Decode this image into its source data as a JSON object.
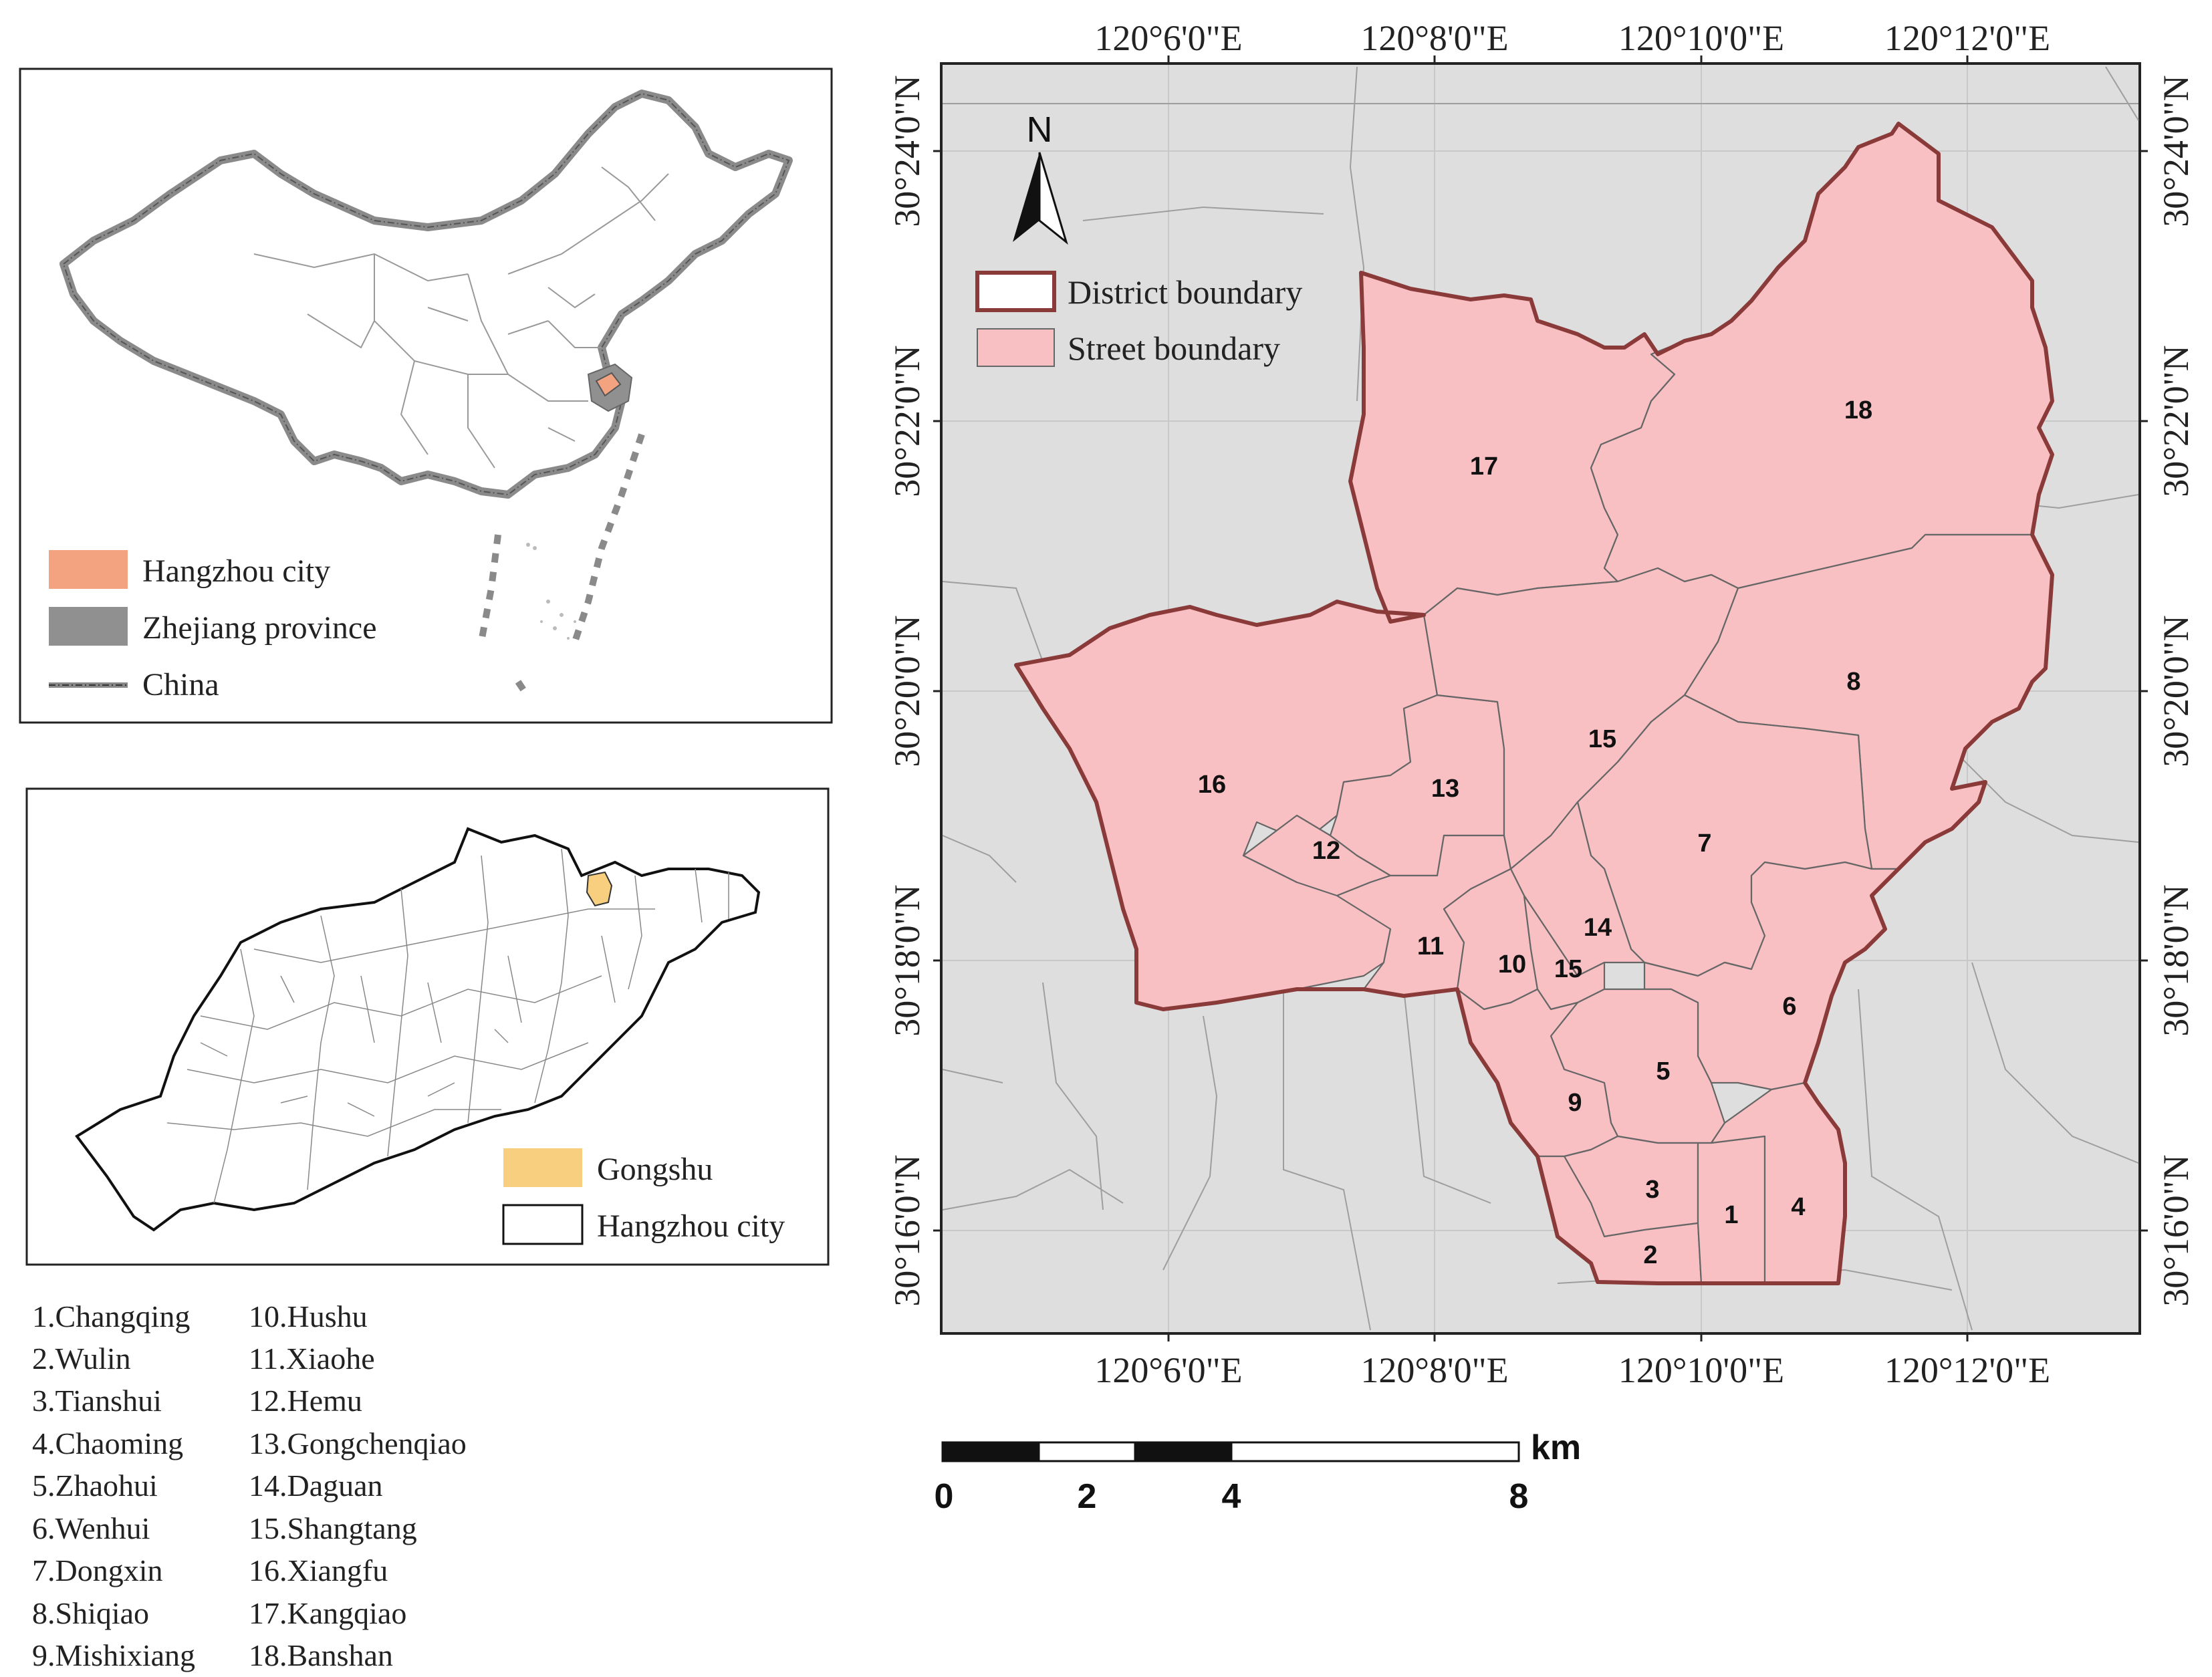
{
  "inset_china": {
    "legend": [
      {
        "label": "Hangzhou city",
        "color": "#f4a380"
      },
      {
        "label": "Zhejiang province",
        "color": "#909090"
      },
      {
        "label": "China",
        "color": "#777777"
      }
    ]
  },
  "inset_hangzhou": {
    "legend": [
      {
        "label": "Gongshu",
        "color": "#f7cf7e"
      },
      {
        "label": "Hangzhou city",
        "color": "#ffffff"
      }
    ]
  },
  "street_list": [
    "1.Changqing",
    "2.Wulin",
    "3.Tianshui",
    "4.Chaoming",
    "5.Zhaohui",
    "6.Wenhui",
    "7.Dongxin",
    "8.Shiqiao",
    "9.Mishixiang",
    "10.Hushu",
    "11.Xiaohe",
    "12.Hemu",
    "13.Gongchenqiao",
    "14.Daguan",
    "15.Shangtang",
    "16.Xiangfu",
    "17.Kangqiao",
    "18.Banshan"
  ],
  "main_map": {
    "north_label": "N",
    "legend": [
      {
        "label": "District boundary",
        "color": "#8b3a3a"
      },
      {
        "label": "Street boundary",
        "color": "#f9c0c3"
      }
    ],
    "top_lon_labels": [
      "120°6'0\"E",
      "120°8'0\"E",
      "120°10'0\"E",
      "120°12'0\"E"
    ],
    "bottom_lon_labels": [
      "120°6'0\"E",
      "120°8'0\"E",
      "120°10'0\"E",
      "120°12'0\"E"
    ],
    "left_lat_labels": [
      "30°24'0\"N",
      "30°22'0\"N",
      "30°20'0\"N",
      "30°18'0\"N",
      "30°16'0\"N"
    ],
    "right_lat_labels": [
      "30°24'0\"N",
      "30°22'0\"N",
      "30°20'0\"N",
      "30°18'0\"N",
      "30°16'0\"N"
    ],
    "street_numbers": [
      "1",
      "2",
      "3",
      "4",
      "5",
      "6",
      "7",
      "8",
      "9",
      "10",
      "11",
      "12",
      "13",
      "14",
      "15",
      "15",
      "16",
      "17",
      "18"
    ],
    "colors": {
      "background": "#dedede",
      "fill": "#f9c0c3",
      "district_line": "#8b3a3a"
    }
  },
  "scale_bar": {
    "unit": "km",
    "ticks": [
      "0",
      "2",
      "4",
      "8"
    ]
  }
}
